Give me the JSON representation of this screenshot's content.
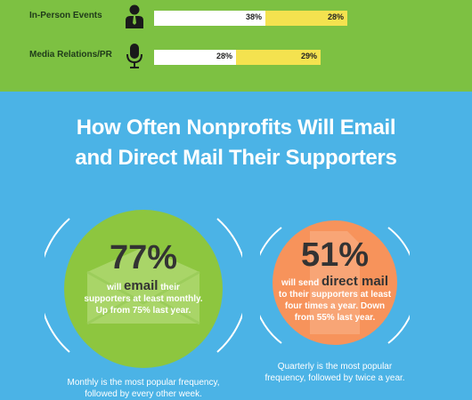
{
  "channels": [
    {
      "label": "In-Person Events",
      "icon": "person-icon",
      "value_a": "38%",
      "value_b": "28%",
      "frac_a": 0.38,
      "frac_b": 0.28
    },
    {
      "label": "Media Relations/PR",
      "icon": "microphone-icon",
      "value_a": "28%",
      "value_b": "29%",
      "frac_a": 0.28,
      "frac_b": 0.29
    }
  ],
  "section_title_line1": "How Often Nonprofits Will Email",
  "section_title_line2": "and Direct Mail Their Supporters",
  "email_stat": {
    "percent": "77%",
    "pre": "will",
    "keyword": "email",
    "post": "their",
    "line2": "supporters at least monthly.",
    "line3": "Up from 75% last year."
  },
  "mail_stat": {
    "percent": "51%",
    "pre": "will send",
    "keyword": "direct mail",
    "line2": "to their supporters at least",
    "line3": "four times a year. Down",
    "line4": "from 55% last year."
  },
  "email_caption_line1": "Monthly is the most popular frequency,",
  "email_caption_line2": "followed by every other week.",
  "mail_caption_line1": "Quarterly is the most popular",
  "mail_caption_line2": "frequency, followed by twice a year.",
  "colors": {
    "green_band": "#7dc142",
    "blue_band": "#4bb3e6",
    "yellow_bar": "#f4e24f",
    "email_circle": "#8dc63f",
    "mail_circle": "#f7935b"
  }
}
